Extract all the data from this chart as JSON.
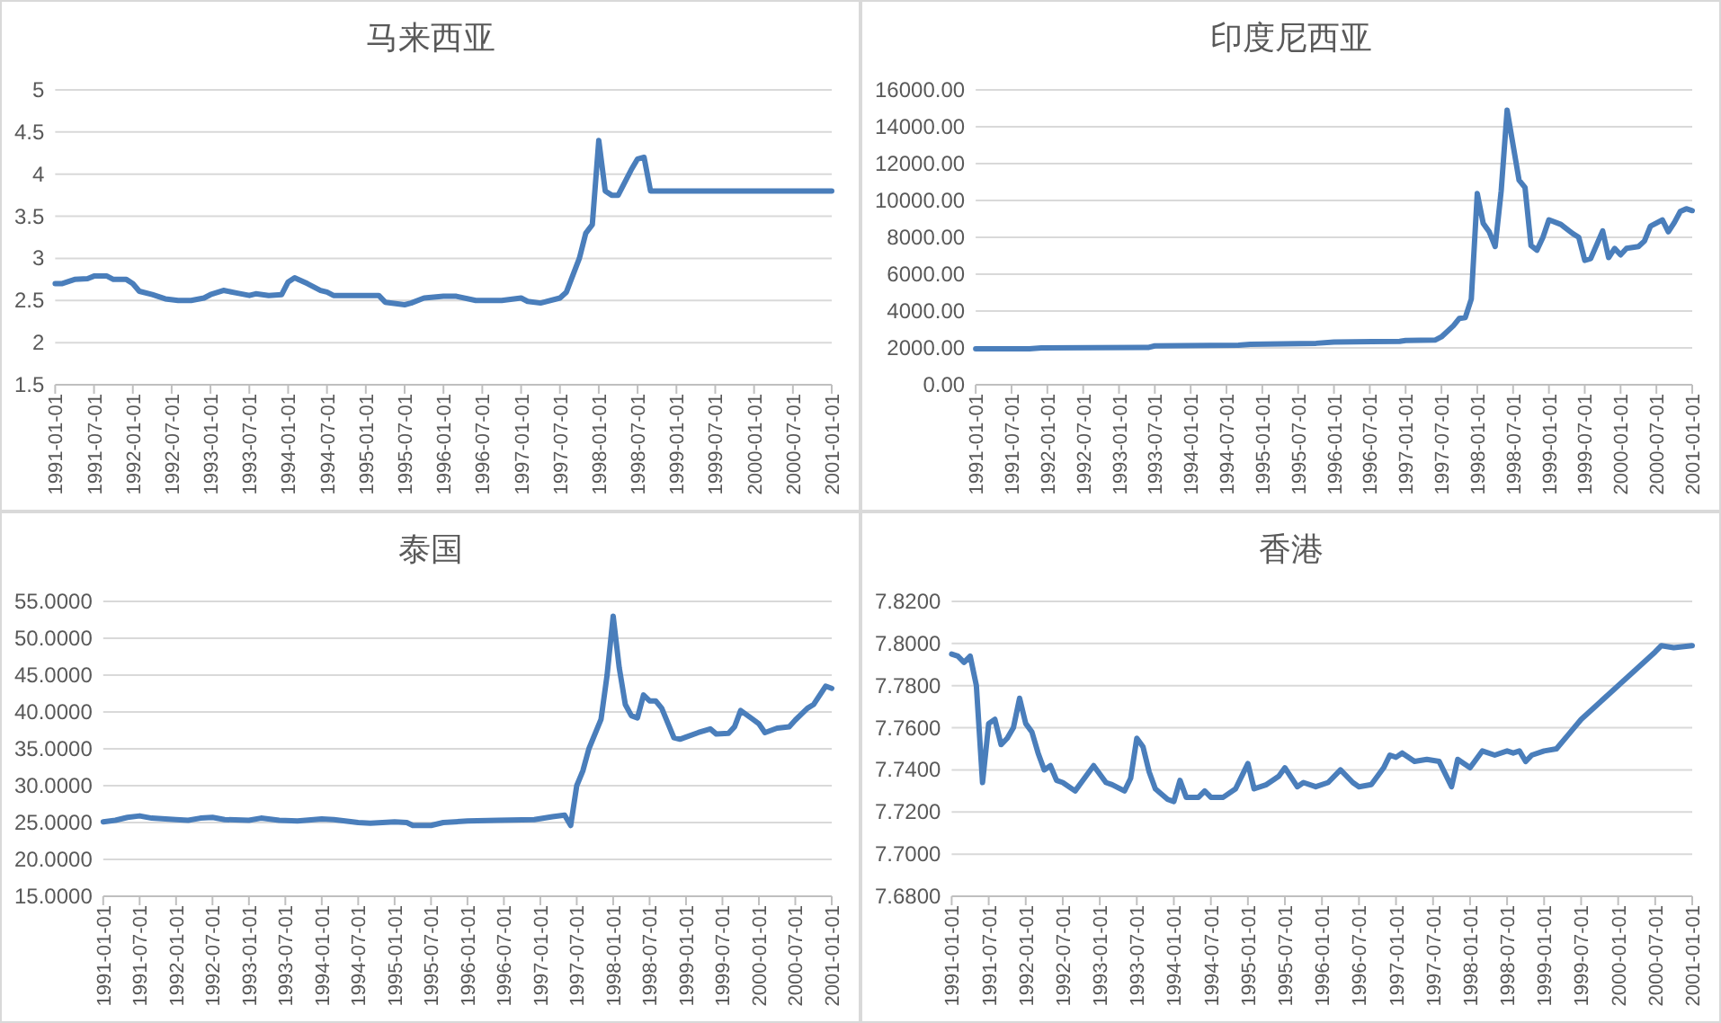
{
  "chart_data": [
    {
      "type": "line",
      "title": "马来西亚",
      "grid": "y",
      "xlim": [
        "1991-01",
        "2001-01"
      ],
      "xticks": [
        {
          "value": "1991-01",
          "label": "1991-01-01"
        },
        {
          "value": "1991-07",
          "label": "1991-07-01"
        },
        {
          "value": "1992-01",
          "label": "1992-01-01"
        },
        {
          "value": "1992-07",
          "label": "1992-07-01"
        },
        {
          "value": "1993-01",
          "label": "1993-01-01"
        },
        {
          "value": "1993-07",
          "label": "1993-07-01"
        },
        {
          "value": "1994-01",
          "label": "1994-01-01"
        },
        {
          "value": "1994-07",
          "label": "1994-07-01"
        },
        {
          "value": "1995-01",
          "label": "1995-01-01"
        },
        {
          "value": "1995-07",
          "label": "1995-07-01"
        },
        {
          "value": "1996-01",
          "label": "1996-01-01"
        },
        {
          "value": "1996-07",
          "label": "1996-07-01"
        },
        {
          "value": "1997-01",
          "label": "1997-01-01"
        },
        {
          "value": "1997-07",
          "label": "1997-07-01"
        },
        {
          "value": "1998-01",
          "label": "1998-01-01"
        },
        {
          "value": "1998-07",
          "label": "1998-07-01"
        },
        {
          "value": "1999-01",
          "label": "1999-01-01"
        },
        {
          "value": "1999-07",
          "label": "1999-07-01"
        },
        {
          "value": "2000-01",
          "label": "2000-01-01"
        },
        {
          "value": "2000-07",
          "label": "2000-07-01"
        },
        {
          "value": "2001-01",
          "label": "2001-01-01"
        }
      ],
      "ylim": [
        1.5,
        5
      ],
      "yticks": [
        1.5,
        2,
        2.5,
        3,
        3.5,
        4,
        4.5,
        5
      ],
      "series": [
        {
          "color": "#4a7ebb",
          "x": [
            "1991-01",
            "1991-02",
            "1991-04",
            "1991-06",
            "1991-07",
            "1991-09",
            "1991-10",
            "1991-12",
            "1992-01",
            "1992-02",
            "1992-04",
            "1992-06",
            "1992-08",
            "1992-10",
            "1992-12",
            "1993-01",
            "1993-03",
            "1993-05",
            "1993-07",
            "1993-08",
            "1993-10",
            "1993-12",
            "1994-01",
            "1994-02",
            "1994-04",
            "1994-06",
            "1994-07",
            "1994-08",
            "1994-10",
            "1995-03",
            "1995-04",
            "1995-07",
            "1995-08",
            "1995-10",
            "1996-01",
            "1996-03",
            "1996-06",
            "1996-10",
            "1997-01",
            "1997-02",
            "1997-04",
            "1997-07",
            "1997-08",
            "1997-10",
            "1997-11",
            "1997-12",
            "1998-01",
            "1998-02",
            "1998-03",
            "1998-04",
            "1998-06",
            "1998-07",
            "1998-08",
            "1998-09",
            "2001-01"
          ],
          "values": [
            2.7,
            2.7,
            2.75,
            2.76,
            2.79,
            2.79,
            2.75,
            2.75,
            2.7,
            2.61,
            2.57,
            2.52,
            2.5,
            2.5,
            2.53,
            2.57,
            2.62,
            2.59,
            2.56,
            2.58,
            2.56,
            2.57,
            2.72,
            2.77,
            2.7,
            2.62,
            2.6,
            2.56,
            2.56,
            2.56,
            2.48,
            2.45,
            2.47,
            2.53,
            2.55,
            2.55,
            2.5,
            2.5,
            2.53,
            2.49,
            2.47,
            2.53,
            2.6,
            3.0,
            3.3,
            3.4,
            4.4,
            3.8,
            3.75,
            3.75,
            4.05,
            4.18,
            4.2,
            3.8,
            3.8
          ]
        }
      ]
    },
    {
      "type": "line",
      "title": "印度尼西亚",
      "grid": "y",
      "xlim": [
        "1991-01",
        "2001-01"
      ],
      "xticks": [
        {
          "value": "1991-01",
          "label": "1991-01-01"
        },
        {
          "value": "1991-07",
          "label": "1991-07-01"
        },
        {
          "value": "1992-01",
          "label": "1992-01-01"
        },
        {
          "value": "1992-07",
          "label": "1992-07-01"
        },
        {
          "value": "1993-01",
          "label": "1993-01-01"
        },
        {
          "value": "1993-07",
          "label": "1993-07-01"
        },
        {
          "value": "1994-01",
          "label": "1994-01-01"
        },
        {
          "value": "1994-07",
          "label": "1994-07-01"
        },
        {
          "value": "1995-01",
          "label": "1995-01-01"
        },
        {
          "value": "1995-07",
          "label": "1995-07-01"
        },
        {
          "value": "1996-01",
          "label": "1996-01-01"
        },
        {
          "value": "1996-07",
          "label": "1996-07-01"
        },
        {
          "value": "1997-01",
          "label": "1997-01-01"
        },
        {
          "value": "1997-07",
          "label": "1997-07-01"
        },
        {
          "value": "1998-01",
          "label": "1998-01-01"
        },
        {
          "value": "1998-07",
          "label": "1998-07-01"
        },
        {
          "value": "1999-01",
          "label": "1999-01-01"
        },
        {
          "value": "1999-07",
          "label": "1999-07-01"
        },
        {
          "value": "2000-01",
          "label": "2000-01-01"
        },
        {
          "value": "2000-07",
          "label": "2000-07-01"
        },
        {
          "value": "2001-01",
          "label": "2001-01-01"
        }
      ],
      "ylim": [
        0,
        16000
      ],
      "yticks": [
        {
          "value": 0,
          "label": "0.00"
        },
        {
          "value": 2000,
          "label": "2000.00"
        },
        {
          "value": 4000,
          "label": "4000.00"
        },
        {
          "value": 6000,
          "label": "6000.00"
        },
        {
          "value": 8000,
          "label": "8000.00"
        },
        {
          "value": 10000,
          "label": "10000.00"
        },
        {
          "value": 12000,
          "label": "12000.00"
        },
        {
          "value": 14000,
          "label": "14000.00"
        },
        {
          "value": 16000,
          "label": "16000.00"
        }
      ],
      "series": [
        {
          "color": "#4a7ebb",
          "x": [
            "1991-01",
            "1991-10",
            "1991-12",
            "1993-06",
            "1993-07",
            "1994-09",
            "1994-11",
            "1995-10",
            "1996-01",
            "1996-12",
            "1997-01",
            "1997-06",
            "1997-07",
            "1997-09",
            "1997-10",
            "1997-11",
            "1997-12",
            "1998-01",
            "1998-02",
            "1998-03",
            "1998-04",
            "1998-05",
            "1998-06",
            "1998-07",
            "1998-08",
            "1998-09",
            "1998-10",
            "1998-11",
            "1998-12",
            "1999-01",
            "1999-03",
            "1999-05",
            "1999-06",
            "1999-07",
            "1999-08",
            "1999-10",
            "1999-11",
            "1999-12",
            "2000-01",
            "2000-02",
            "2000-04",
            "2000-05",
            "2000-06",
            "2000-08",
            "2000-09",
            "2000-10",
            "2000-11",
            "2000-12",
            "2001-01"
          ],
          "values": [
            1950,
            1950,
            2000,
            2030,
            2110,
            2150,
            2200,
            2250,
            2320,
            2350,
            2400,
            2430,
            2600,
            3200,
            3600,
            3650,
            4650,
            10375,
            8750,
            8300,
            7500,
            10500,
            14900,
            13000,
            11100,
            10700,
            7550,
            7300,
            8000,
            8950,
            8700,
            8200,
            8000,
            6750,
            6850,
            8350,
            6900,
            7400,
            7050,
            7400,
            7500,
            7800,
            8600,
            8950,
            8300,
            8800,
            9400,
            9550,
            9450
          ]
        }
      ]
    },
    {
      "type": "line",
      "title": "泰国",
      "grid": "y",
      "xlim": [
        "1991-01",
        "2001-01"
      ],
      "xticks": [
        {
          "value": "1991-01",
          "label": "1991-01-01"
        },
        {
          "value": "1991-07",
          "label": "1991-07-01"
        },
        {
          "value": "1992-01",
          "label": "1992-01-01"
        },
        {
          "value": "1992-07",
          "label": "1992-07-01"
        },
        {
          "value": "1993-01",
          "label": "1993-01-01"
        },
        {
          "value": "1993-07",
          "label": "1993-07-01"
        },
        {
          "value": "1994-01",
          "label": "1994-01-01"
        },
        {
          "value": "1994-07",
          "label": "1994-07-01"
        },
        {
          "value": "1995-01",
          "label": "1995-01-01"
        },
        {
          "value": "1995-07",
          "label": "1995-07-01"
        },
        {
          "value": "1996-01",
          "label": "1996-01-01"
        },
        {
          "value": "1996-07",
          "label": "1996-07-01"
        },
        {
          "value": "1997-01",
          "label": "1997-01-01"
        },
        {
          "value": "1997-07",
          "label": "1997-07-01"
        },
        {
          "value": "1998-01",
          "label": "1998-01-01"
        },
        {
          "value": "1998-07",
          "label": "1998-07-01"
        },
        {
          "value": "1999-01",
          "label": "1999-01-01"
        },
        {
          "value": "1999-07",
          "label": "1999-07-01"
        },
        {
          "value": "2000-01",
          "label": "2000-01-01"
        },
        {
          "value": "2000-07",
          "label": "2000-07-01"
        },
        {
          "value": "2001-01",
          "label": "2001-01-01"
        }
      ],
      "ylim": [
        15,
        55
      ],
      "yticks": [
        {
          "value": 15,
          "label": "15.0000"
        },
        {
          "value": 20,
          "label": "20.0000"
        },
        {
          "value": 25,
          "label": "25.0000"
        },
        {
          "value": 30,
          "label": "30.0000"
        },
        {
          "value": 35,
          "label": "35.0000"
        },
        {
          "value": 40,
          "label": "40.0000"
        },
        {
          "value": 45,
          "label": "45.0000"
        },
        {
          "value": 50,
          "label": "50.0000"
        },
        {
          "value": 55,
          "label": "55.0000"
        }
      ],
      "series": [
        {
          "color": "#4a7ebb",
          "x": [
            "1991-01",
            "1991-03",
            "1991-05",
            "1991-07",
            "1991-09",
            "1992-01",
            "1992-03",
            "1992-05",
            "1992-07",
            "1992-09",
            "1993-01",
            "1993-03",
            "1993-06",
            "1993-09",
            "1994-01",
            "1994-03",
            "1994-07",
            "1994-09",
            "1995-01",
            "1995-03",
            "1995-04",
            "1995-07",
            "1995-09",
            "1996-01",
            "1996-06",
            "1996-12",
            "1997-03",
            "1997-05",
            "1997-06",
            "1997-07",
            "1997-08",
            "1997-09",
            "1997-11",
            "1997-12",
            "1998-01",
            "1998-02",
            "1998-03",
            "1998-04",
            "1998-05",
            "1998-06",
            "1998-07",
            "1998-08",
            "1998-09",
            "1998-11",
            "1998-12",
            "1999-03",
            "1999-05",
            "1999-06",
            "1999-08",
            "1999-09",
            "1999-10",
            "1999-12",
            "2000-01",
            "2000-02",
            "2000-04",
            "2000-06",
            "2000-07",
            "2000-09",
            "2000-10",
            "2000-12",
            "2001-01"
          ],
          "values": [
            25.1,
            25.3,
            25.7,
            25.9,
            25.6,
            25.4,
            25.3,
            25.6,
            25.7,
            25.4,
            25.3,
            25.6,
            25.3,
            25.2,
            25.5,
            25.4,
            25.0,
            24.9,
            25.1,
            25.0,
            24.6,
            24.6,
            25.0,
            25.2,
            25.3,
            25.4,
            25.8,
            26.0,
            24.6,
            30.0,
            32.0,
            35.0,
            39.0,
            45.0,
            53.0,
            46.0,
            41.0,
            39.5,
            39.2,
            42.3,
            41.5,
            41.5,
            40.5,
            36.5,
            36.3,
            37.2,
            37.7,
            37.0,
            37.1,
            38.0,
            40.2,
            39.0,
            38.4,
            37.2,
            37.8,
            38.0,
            38.9,
            40.5,
            41.0,
            43.5,
            43.2
          ]
        }
      ]
    },
    {
      "type": "line",
      "title": "香港",
      "grid": "y",
      "xlim": [
        "1991-01",
        "2001-01"
      ],
      "xticks": [
        {
          "value": "1991-01",
          "label": "1991-01-01"
        },
        {
          "value": "1991-07",
          "label": "1991-07-01"
        },
        {
          "value": "1992-01",
          "label": "1992-01-01"
        },
        {
          "value": "1992-07",
          "label": "1992-07-01"
        },
        {
          "value": "1993-01",
          "label": "1993-01-01"
        },
        {
          "value": "1993-07",
          "label": "1993-07-01"
        },
        {
          "value": "1994-01",
          "label": "1994-01-01"
        },
        {
          "value": "1994-07",
          "label": "1994-07-01"
        },
        {
          "value": "1995-01",
          "label": "1995-01-01"
        },
        {
          "value": "1995-07",
          "label": "1995-07-01"
        },
        {
          "value": "1996-01",
          "label": "1996-01-01"
        },
        {
          "value": "1996-07",
          "label": "1996-07-01"
        },
        {
          "value": "1997-01",
          "label": "1997-01-01"
        },
        {
          "value": "1997-07",
          "label": "1997-07-01"
        },
        {
          "value": "1998-01",
          "label": "1998-01-01"
        },
        {
          "value": "1998-07",
          "label": "1998-07-01"
        },
        {
          "value": "1999-01",
          "label": "1999-01-01"
        },
        {
          "value": "1999-07",
          "label": "1999-07-01"
        },
        {
          "value": "2000-01",
          "label": "2000-01-01"
        },
        {
          "value": "2000-07",
          "label": "2000-07-01"
        },
        {
          "value": "2001-01",
          "label": "2001-01-01"
        }
      ],
      "ylim": [
        7.68,
        7.82
      ],
      "yticks": [
        {
          "value": 7.68,
          "label": "7.6800"
        },
        {
          "value": 7.7,
          "label": "7.7000"
        },
        {
          "value": 7.72,
          "label": "7.7200"
        },
        {
          "value": 7.74,
          "label": "7.7400"
        },
        {
          "value": 7.76,
          "label": "7.7600"
        },
        {
          "value": 7.78,
          "label": "7.7800"
        },
        {
          "value": 7.8,
          "label": "7.8000"
        },
        {
          "value": 7.82,
          "label": "7.8200"
        }
      ],
      "series": [
        {
          "color": "#4a7ebb",
          "x": [
            "1991-01",
            "1991-02",
            "1991-03",
            "1991-04",
            "1991-05",
            "1991-06",
            "1991-07",
            "1991-08",
            "1991-09",
            "1991-10",
            "1991-11",
            "1991-12",
            "1992-01",
            "1992-02",
            "1992-03",
            "1992-04",
            "1992-05",
            "1992-06",
            "1992-07",
            "1992-09",
            "1992-10",
            "1992-12",
            "1993-02",
            "1993-03",
            "1993-05",
            "1993-06",
            "1993-07",
            "1993-08",
            "1993-09",
            "1993-10",
            "1993-12",
            "1994-01",
            "1994-02",
            "1994-03",
            "1994-05",
            "1994-06",
            "1994-07",
            "1994-09",
            "1994-11",
            "1995-01",
            "1995-02",
            "1995-04",
            "1995-06",
            "1995-07",
            "1995-09",
            "1995-10",
            "1995-12",
            "1996-02",
            "1996-04",
            "1996-06",
            "1996-07",
            "1996-09",
            "1996-11",
            "1996-12",
            "1997-01",
            "1997-02",
            "1997-04",
            "1997-06",
            "1997-08",
            "1997-10",
            "1997-11",
            "1998-01",
            "1998-03",
            "1998-05",
            "1998-07",
            "1998-08",
            "1998-09",
            "1998-10",
            "1998-11",
            "1999-01",
            "1999-03",
            "1999-05",
            "1999-07",
            "1999-10",
            "2000-01",
            "2000-04",
            "2000-07",
            "2000-08",
            "2000-10",
            "2001-01"
          ],
          "values": [
            7.795,
            7.794,
            7.791,
            7.794,
            7.78,
            7.734,
            7.762,
            7.764,
            7.752,
            7.755,
            7.76,
            7.774,
            7.762,
            7.758,
            7.748,
            7.74,
            7.742,
            7.735,
            7.734,
            7.73,
            7.734,
            7.742,
            7.734,
            7.733,
            7.73,
            7.736,
            7.755,
            7.751,
            7.739,
            7.731,
            7.726,
            7.725,
            7.735,
            7.727,
            7.727,
            7.73,
            7.727,
            7.727,
            7.731,
            7.743,
            7.731,
            7.733,
            7.737,
            7.741,
            7.732,
            7.734,
            7.732,
            7.734,
            7.74,
            7.734,
            7.732,
            7.733,
            7.741,
            7.747,
            7.746,
            7.748,
            7.744,
            7.745,
            7.744,
            7.732,
            7.745,
            7.741,
            7.749,
            7.747,
            7.749,
            7.748,
            7.749,
            7.744,
            7.747,
            7.749,
            7.75,
            7.757,
            7.764,
            7.772,
            7.78,
            7.788,
            7.796,
            7.799,
            7.798,
            7.799
          ]
        }
      ]
    }
  ]
}
